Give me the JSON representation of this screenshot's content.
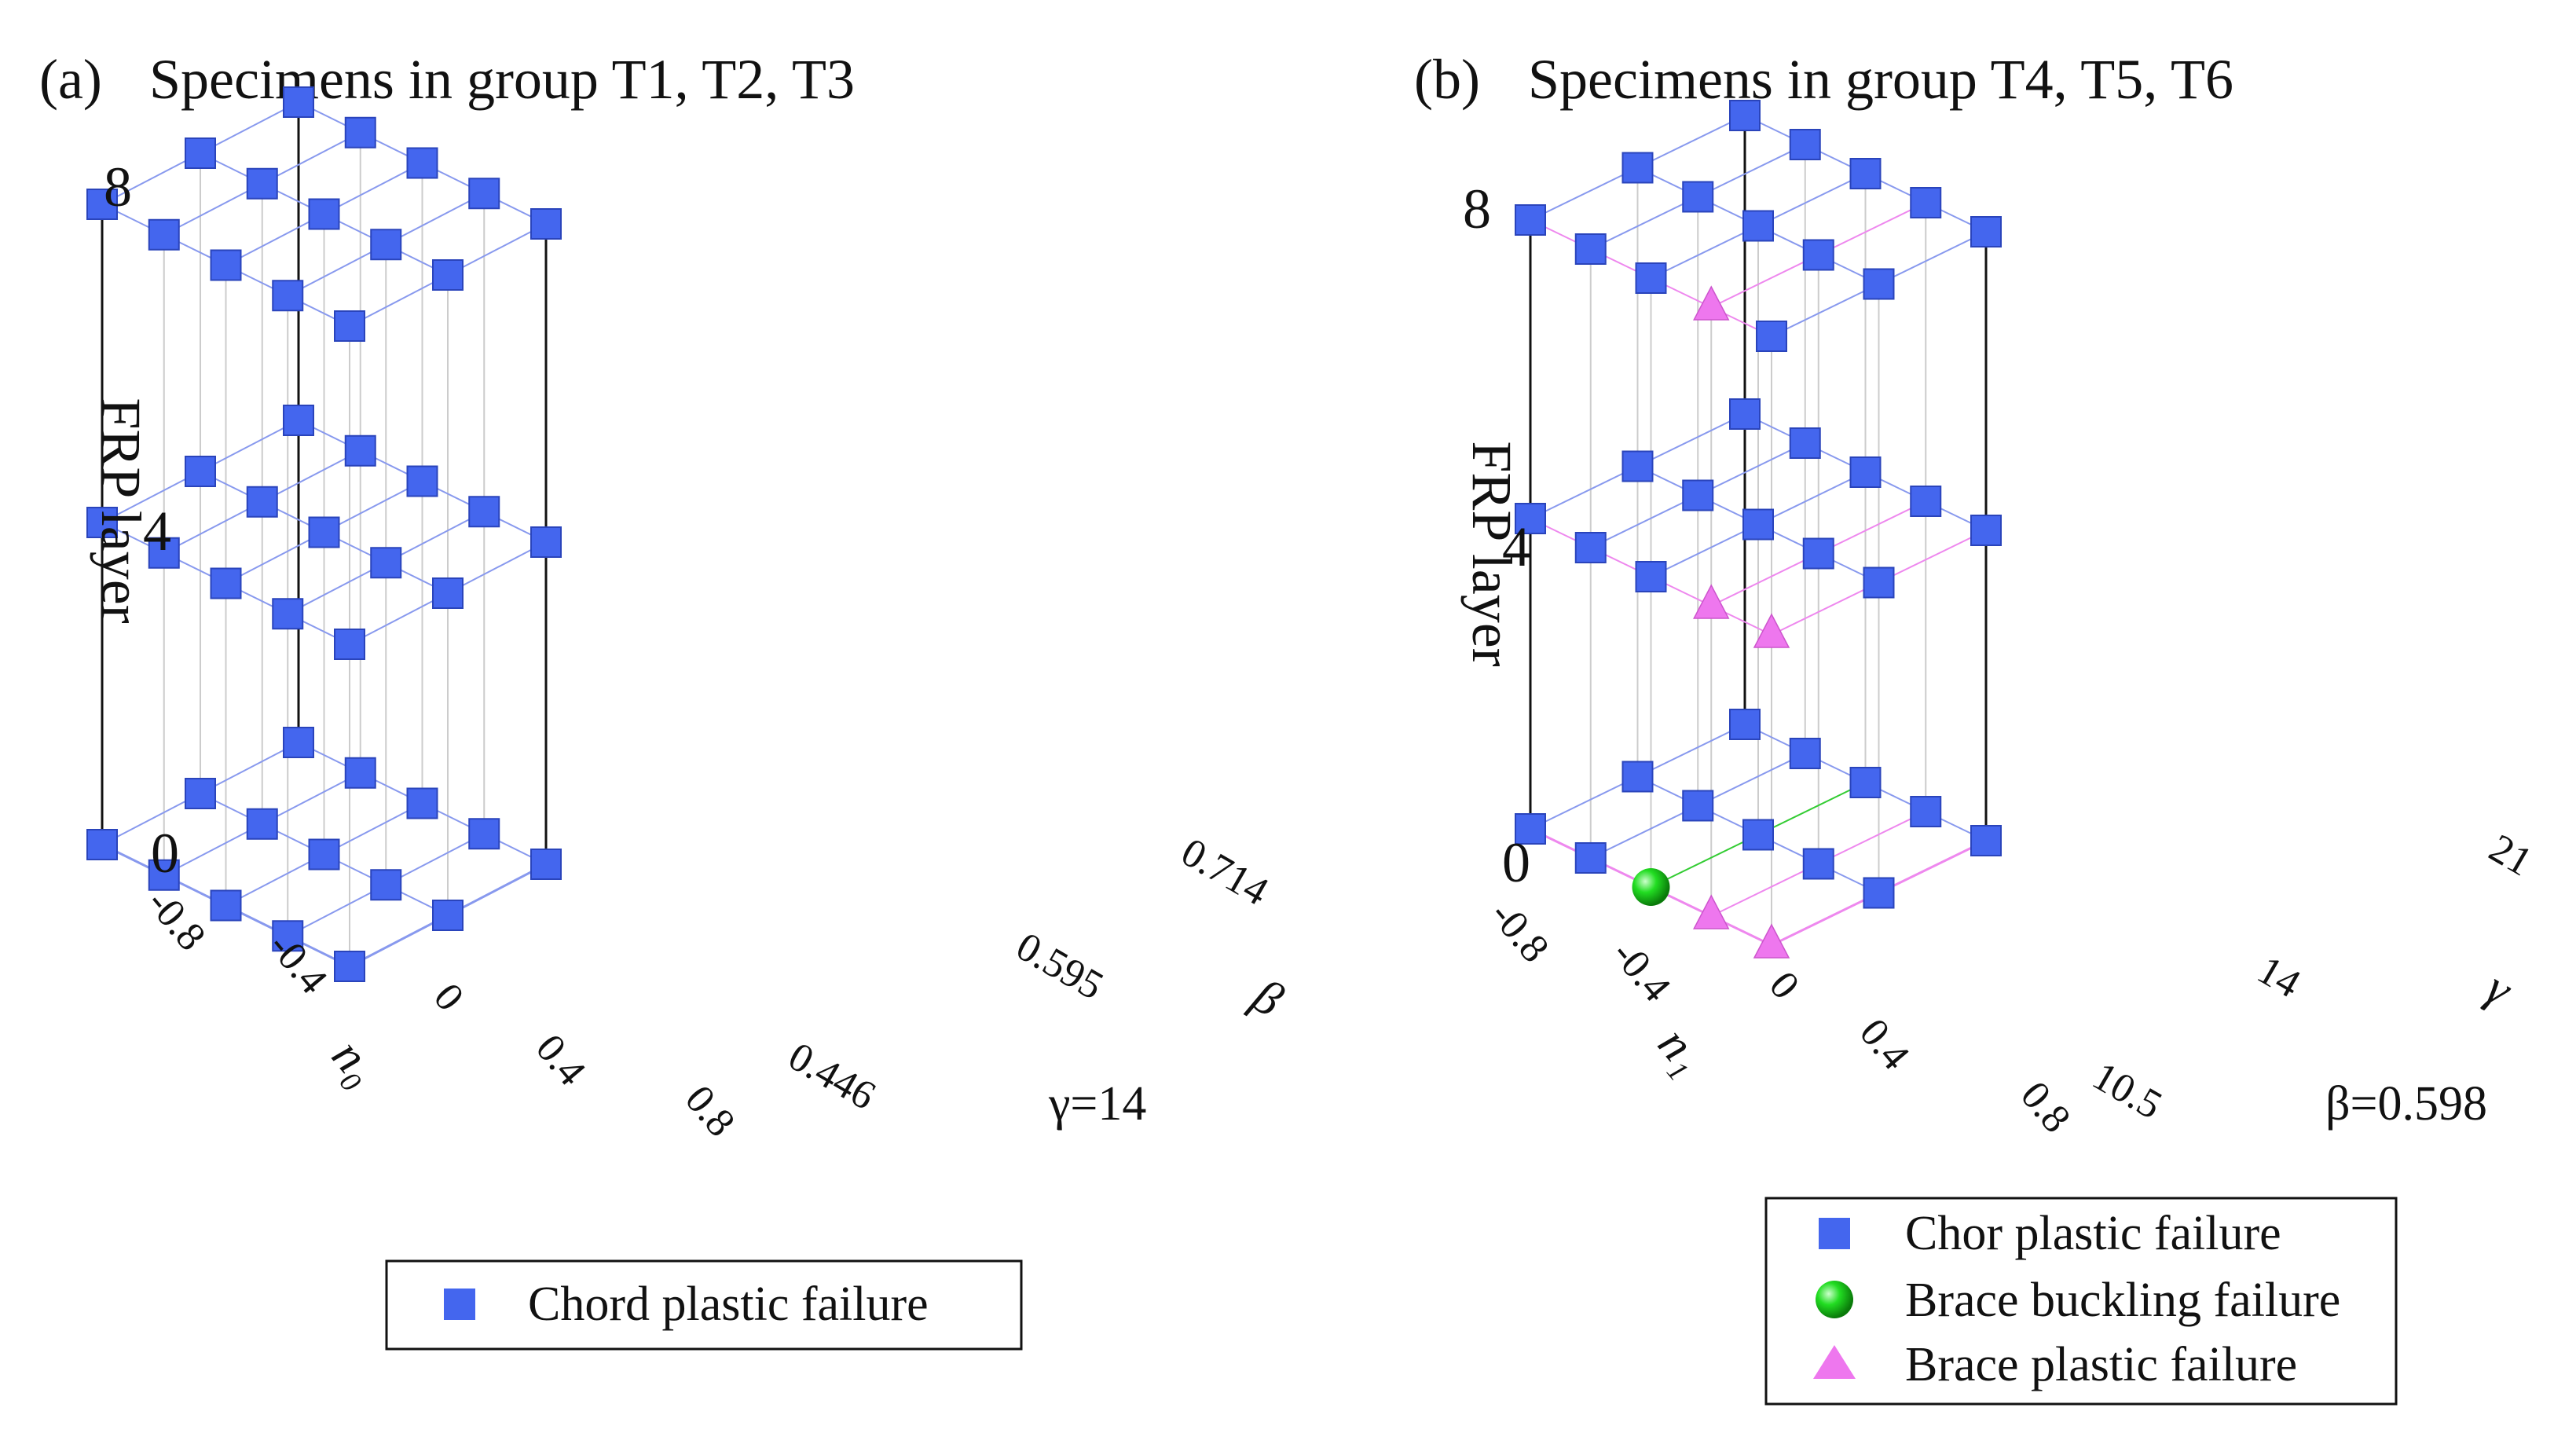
{
  "chart_data": [
    {
      "type": "scatter3d",
      "panel_label": "(a)",
      "title": "Specimens in group T1, T2, T3",
      "zlabel": "FRP layer",
      "z_ticks": [
        "0",
        "4",
        "8"
      ],
      "x_name": "n₀",
      "x_ticks": [
        "-0.8",
        "-0.4",
        "0",
        "0.4",
        "0.8"
      ],
      "y_name": "β",
      "y_ticks": [
        "0.446",
        "0.595",
        "0.714"
      ],
      "fixed_param": "γ=14",
      "legend": [
        {
          "label": "Chord plastic failure",
          "marker": "square",
          "color": "#4466ee"
        }
      ],
      "default_mode": "Chord plastic failure",
      "points": []
    },
    {
      "type": "scatter3d",
      "panel_label": "(b)",
      "title": "Specimens in group T4, T5, T6",
      "zlabel": "FRP layer",
      "z_ticks": [
        "0",
        "4",
        "8"
      ],
      "x_name": "n₁",
      "x_ticks": [
        "-0.8",
        "-0.4",
        "0",
        "0.4",
        "0.8"
      ],
      "y_name": "γ",
      "y_ticks": [
        "10.5",
        "14",
        "21"
      ],
      "fixed_param": "β=0.598",
      "legend": [
        {
          "label": "Chor plastic failure",
          "marker": "square",
          "color": "#4466ee"
        },
        {
          "label": "Brace buckling failure",
          "marker": "sphere",
          "color": "#22cc22"
        },
        {
          "label": "Brace plastic failure",
          "marker": "triangle",
          "color": "#ee77ee"
        }
      ],
      "default_mode": "Chor plastic failure",
      "points": [
        {
          "x": 0,
          "y": 10.5,
          "z": 0,
          "mode": "Brace buckling failure"
        },
        {
          "x": 0.4,
          "y": 10.5,
          "z": 0,
          "mode": "Brace plastic failure"
        },
        {
          "x": 0.8,
          "y": 10.5,
          "z": 0,
          "mode": "Brace plastic failure"
        },
        {
          "x": 0.4,
          "y": 10.5,
          "z": 4,
          "mode": "Brace plastic failure"
        },
        {
          "x": 0.8,
          "y": 10.5,
          "z": 4,
          "mode": "Brace plastic failure"
        },
        {
          "x": 0.4,
          "y": 10.5,
          "z": 8,
          "mode": "Brace plastic failure"
        }
      ]
    }
  ],
  "colors": {
    "grid_line": "#8899ee",
    "vertical_line": "#cccccc",
    "edge_line": "#111111",
    "pink_line": "#ee88ee",
    "green_line": "#33cc33",
    "square": "#4466ee",
    "sphere": "#22cc22",
    "triangle": "#ee77ee"
  }
}
